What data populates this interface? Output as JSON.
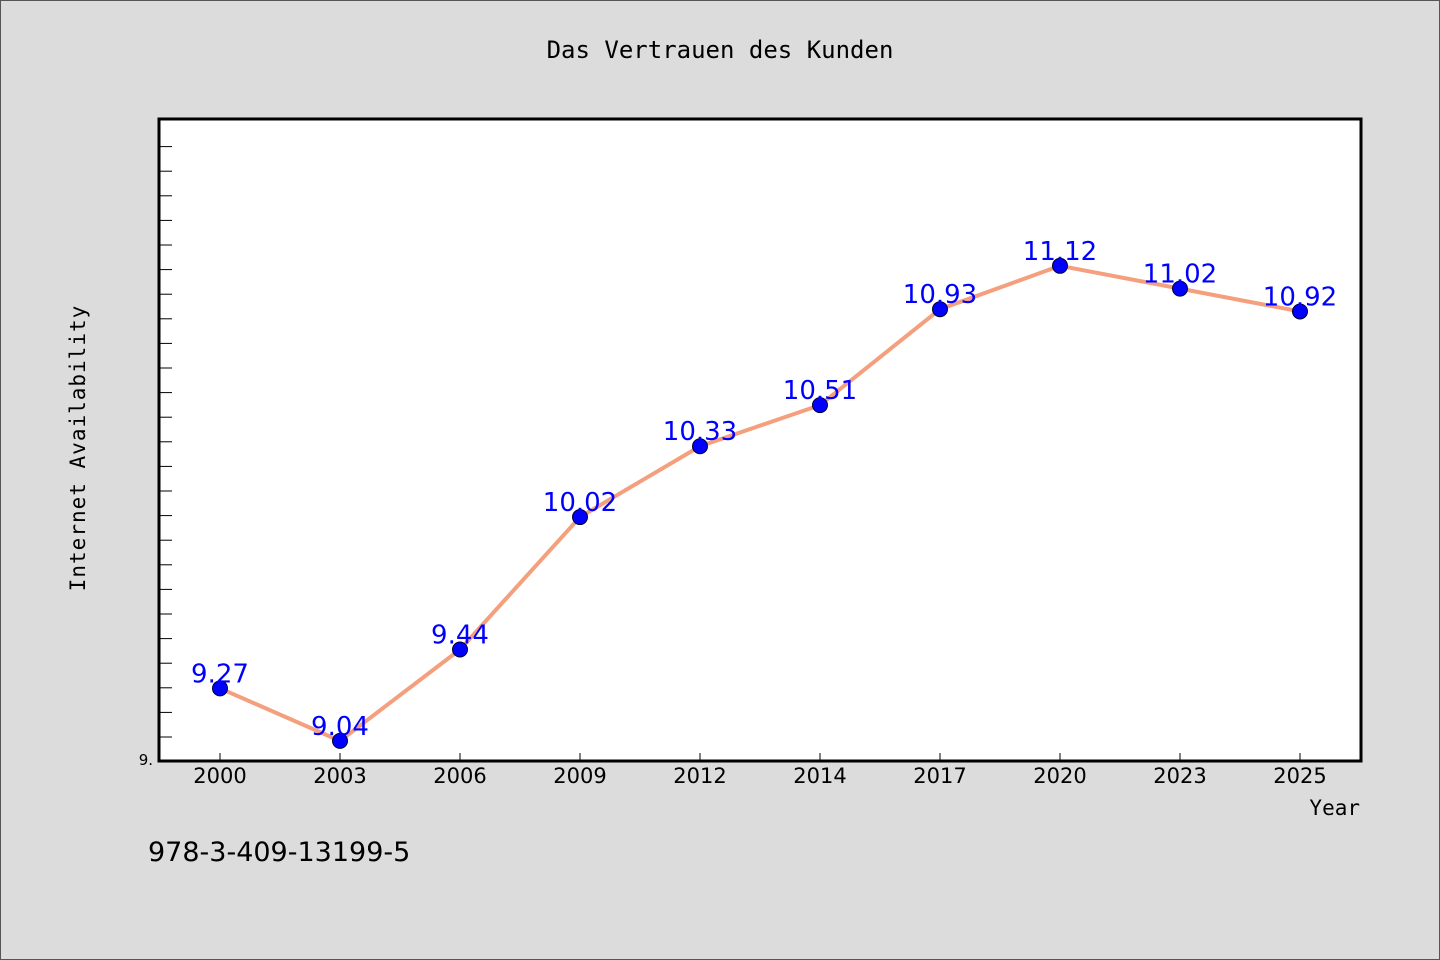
{
  "chart_data": {
    "type": "line",
    "title": "Das Vertrauen des Kunden",
    "xlabel": "Year",
    "ylabel": "Internet Availability",
    "categories": [
      "2000",
      "2003",
      "2006",
      "2009",
      "2012",
      "2014",
      "2017",
      "2020",
      "2023",
      "2025"
    ],
    "series": [
      {
        "values": [
          9.27,
          9.04,
          9.44,
          10.02,
          10.33,
          10.51,
          10.93,
          11.12,
          11.02,
          10.92
        ],
        "labels": [
          "9.27",
          "9.04",
          "9.44",
          "10.02",
          "10.33",
          "10.51",
          "10.93",
          "11.12",
          "11.02",
          "10.92"
        ],
        "line_color": "#f4a07e",
        "marker_color": "#0000ff"
      }
    ],
    "ylim": [
      9.0,
      11.6
    ],
    "y_tick_labels": [
      {
        "value": 9.0,
        "label": "9."
      }
    ],
    "grid": false,
    "legend": "none"
  },
  "footer": {
    "isbn": "978-3-409-13199-5"
  },
  "colors": {
    "background": "#dcdcdc",
    "plot_background": "#ffffff",
    "line": "#f4a07e",
    "marker": "#0000ff",
    "label": "#0000ff"
  }
}
